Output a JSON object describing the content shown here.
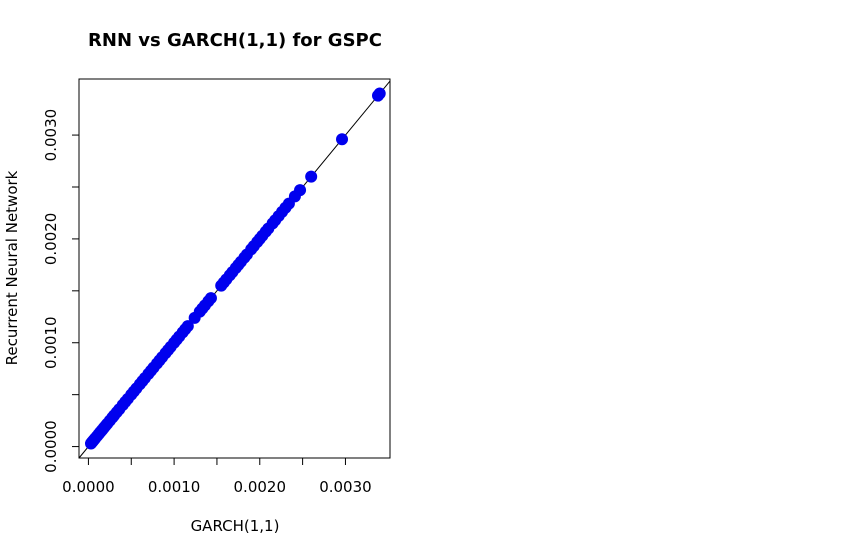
{
  "chart_data": {
    "type": "scatter",
    "title": "RNN vs GARCH(1,1) for GSPC",
    "xlabel": "GARCH(1,1)",
    "ylabel": "Recurrent Neural Network",
    "xlim": [
      -0.00011,
      0.00352
    ],
    "ylim": [
      -0.00011,
      0.00354
    ],
    "x_ticks": [
      0,
      0.0005,
      0.001,
      0.0015,
      0.002,
      0.0025,
      0.003
    ],
    "x_tick_labels": [
      "0.0000",
      "",
      "0.0010",
      "",
      "0.0020",
      "",
      "0.0030"
    ],
    "y_ticks": [
      0,
      0.0005,
      0.001,
      0.0015,
      0.002,
      0.0025,
      0.003
    ],
    "y_tick_labels": [
      "0.0000",
      "",
      "0.0010",
      "",
      "0.0020",
      "",
      "0.0030"
    ],
    "reference_line": "y = x",
    "grid": false,
    "point_color": "#0000ee",
    "x": [
      3e-05,
      4e-05,
      5e-05,
      6e-05,
      7e-05,
      8e-05,
      0.0001,
      0.00012,
      0.00014,
      0.00016,
      0.00018,
      0.0002,
      0.00022,
      0.00025,
      0.00028,
      0.0003,
      0.00033,
      0.00036,
      0.0004,
      0.00043,
      0.00046,
      0.0005,
      0.00053,
      0.00056,
      0.0006,
      0.00063,
      0.00066,
      0.0007,
      0.00073,
      0.00076,
      0.0008,
      0.00083,
      0.00086,
      0.0009,
      0.00093,
      0.00096,
      0.001,
      0.00103,
      0.00106,
      0.0011,
      0.00113,
      0.00116,
      0.00124,
      0.0013,
      0.00133,
      0.00136,
      0.0014,
      0.00143,
      0.00155,
      0.00158,
      0.00161,
      0.00165,
      0.00168,
      0.00172,
      0.00175,
      0.00178,
      0.00182,
      0.00185,
      0.0019,
      0.00193,
      0.00197,
      0.002,
      0.00203,
      0.00207,
      0.0021,
      0.00215,
      0.00218,
      0.00222,
      0.00226,
      0.0023,
      0.00234,
      0.00241,
      0.00247,
      0.0026,
      0.00296,
      0.00338,
      0.0034
    ],
    "y": [
      3e-05,
      4e-05,
      5e-05,
      6e-05,
      7e-05,
      8e-05,
      0.0001,
      0.00012,
      0.00014,
      0.00016,
      0.00018,
      0.0002,
      0.00022,
      0.00025,
      0.00028,
      0.0003,
      0.00033,
      0.00036,
      0.0004,
      0.00043,
      0.00046,
      0.0005,
      0.00053,
      0.00056,
      0.0006,
      0.00063,
      0.00066,
      0.0007,
      0.00073,
      0.00076,
      0.0008,
      0.00083,
      0.00086,
      0.0009,
      0.00093,
      0.00096,
      0.001,
      0.00103,
      0.00106,
      0.0011,
      0.00113,
      0.00116,
      0.00124,
      0.0013,
      0.00133,
      0.00136,
      0.0014,
      0.00143,
      0.00155,
      0.00158,
      0.00161,
      0.00165,
      0.00168,
      0.00172,
      0.00175,
      0.00178,
      0.00182,
      0.00185,
      0.0019,
      0.00193,
      0.00197,
      0.002,
      0.00203,
      0.00207,
      0.0021,
      0.00215,
      0.00218,
      0.00222,
      0.00226,
      0.0023,
      0.00234,
      0.00241,
      0.00247,
      0.0026,
      0.00296,
      0.00338,
      0.0034
    ]
  }
}
